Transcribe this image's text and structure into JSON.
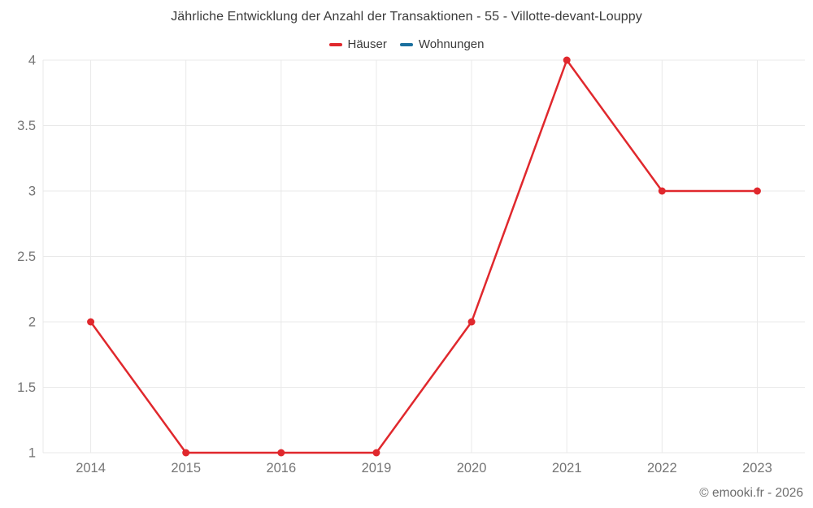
{
  "header": {
    "title": "Jährliche Entwicklung der Anzahl der Transaktionen - 55 - Villotte-devant-Louppy"
  },
  "footer": {
    "copyright": "© emooki.fr - 2026"
  },
  "colors": {
    "series_hauser": "#e0282d",
    "series_wohnungen": "#1a6f9e",
    "gridline": "#e9e9e9",
    "axis_label": "#757575",
    "title_text": "#3b3b3b",
    "background": "#ffffff"
  },
  "chart_data": {
    "type": "line",
    "title": "Jährliche Entwicklung der Anzahl der Transaktionen - 55 - Villotte-devant-Louppy",
    "categories": [
      "2014",
      "2015",
      "2016",
      "2019",
      "2020",
      "2021",
      "2022",
      "2023"
    ],
    "series": [
      {
        "name": "Häuser",
        "color": "#e0282d",
        "values": [
          2,
          1,
          1,
          1,
          2,
          4,
          3,
          3
        ]
      },
      {
        "name": "Wohnungen",
        "color": "#1a6f9e",
        "values": []
      }
    ],
    "xlabel": "",
    "ylabel": "",
    "ylim": [
      1,
      4
    ],
    "ytick_step": 0.5,
    "yticks": [
      "1",
      "1.5",
      "2",
      "2.5",
      "3",
      "3.5",
      "4"
    ],
    "grid": true,
    "legend_position": "top"
  }
}
